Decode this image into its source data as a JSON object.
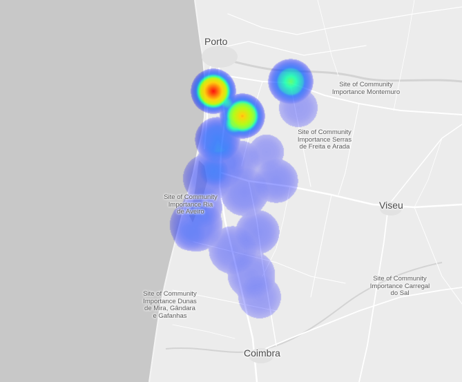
{
  "map": {
    "colors": {
      "land": "#ececec",
      "sea": "#c9c9c9",
      "road": "#ffffff",
      "river": "#d2d2d2"
    },
    "labels": {
      "porto": "Porto",
      "viseu": "Viseu",
      "coimbra": "Coimbra",
      "montemuro": "Site of Community\nImportance Montemuro",
      "freita": "Site of Community\nImportance Serras\nde Freita e Arada",
      "aveiro": "Site of Community\nImportance Ria\nde Aveiro",
      "mira": "Site of Community\nImportance Dunas\nde Mira, Gândara\ne Gafanhas",
      "carregal": "Site of Community\nImportance Carregal\ndo Sal"
    }
  }
}
